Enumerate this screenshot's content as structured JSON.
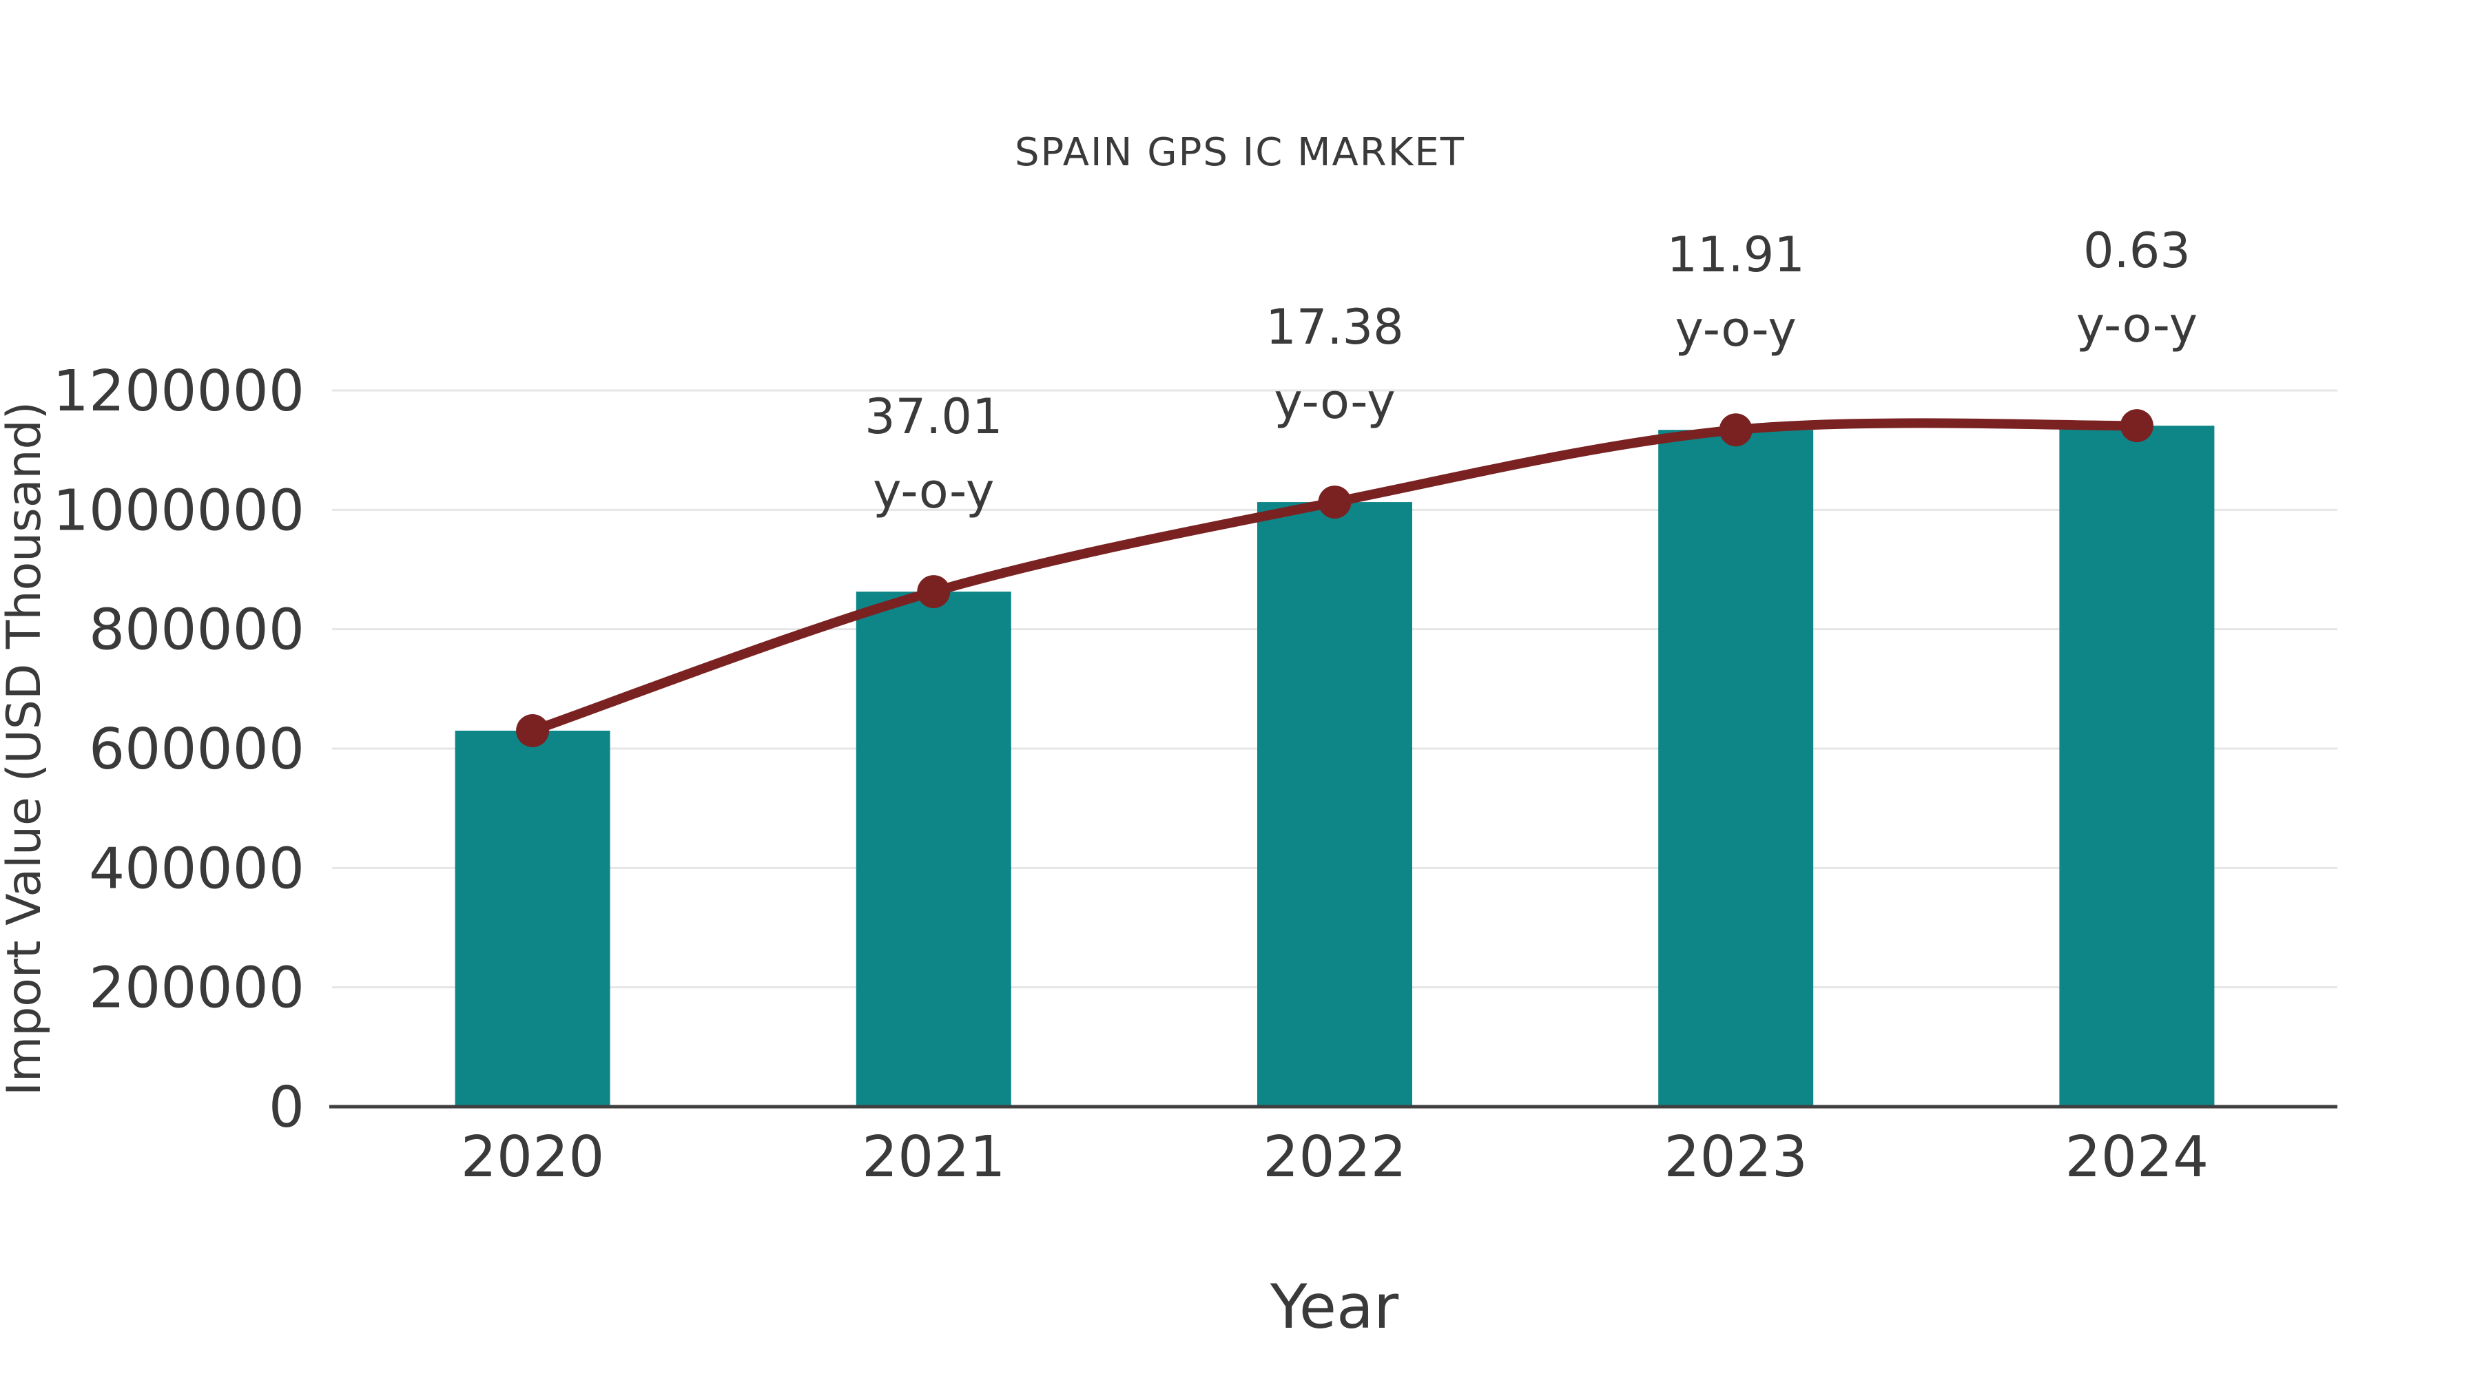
{
  "chart_data": {
    "type": "bar",
    "title": "SPAIN GPS IC MARKET",
    "xlabel": "Year",
    "ylabel": "Import Value (USD Thousand)",
    "categories": [
      "2020",
      "2021",
      "2022",
      "2023",
      "2024"
    ],
    "series": [
      {
        "name": "Import Value",
        "chart": "bar",
        "color": "#0e8688",
        "values": [
          630000,
          863000,
          1013000,
          1134000,
          1141000
        ]
      },
      {
        "name": "Import Value Trend",
        "chart": "line",
        "color": "#7a2222",
        "values": [
          630000,
          863000,
          1013000,
          1134000,
          1141000
        ]
      }
    ],
    "yoy_growth_percent": {
      "2021": 37.01,
      "2022": 17.38,
      "2023": 11.91,
      "2024": 0.63
    },
    "annotations": [
      {
        "category": "2021",
        "line1": "37.01",
        "line2": "y-o-y"
      },
      {
        "category": "2022",
        "line1": "17.38",
        "line2": "y-o-y"
      },
      {
        "category": "2023",
        "line1": "11.91",
        "line2": "y-o-y"
      },
      {
        "category": "2024",
        "line1": "0.63",
        "line2": "y-o-y"
      }
    ],
    "ylim": [
      0,
      1200000
    ],
    "yticks": [
      0,
      200000,
      400000,
      600000,
      800000,
      1000000,
      1200000
    ],
    "grid": true,
    "legend": "none",
    "colors": {
      "bar": "#0e8688",
      "line": "#7a2222",
      "grid": "#e6e6e6",
      "axis": "#3f3f3f",
      "text": "#3a3a3a",
      "background": "#ffffff"
    }
  }
}
